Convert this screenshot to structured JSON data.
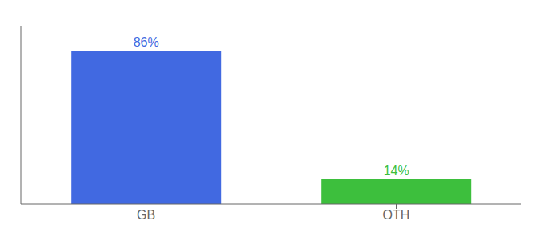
{
  "chart_data": {
    "type": "bar",
    "categories": [
      "GB",
      "OTH"
    ],
    "values": [
      86,
      14
    ],
    "value_labels": [
      "86%",
      "14%"
    ],
    "data_labels": true,
    "colors": [
      "#4169e1",
      "#3dbf3d"
    ],
    "ylim": [
      0,
      100
    ],
    "tick_labels": "x"
  }
}
